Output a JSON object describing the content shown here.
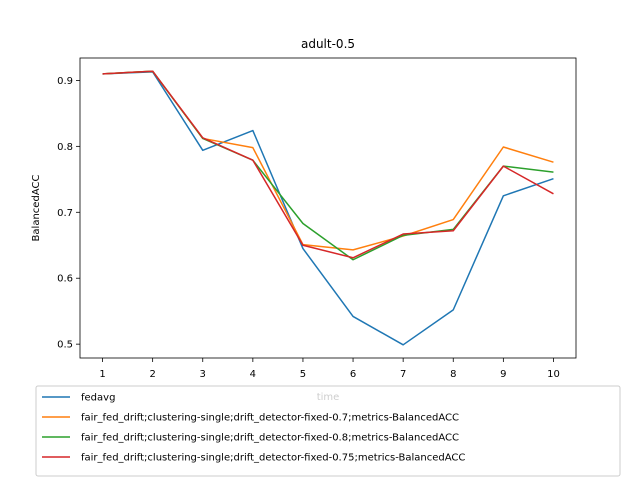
{
  "chart_data": {
    "type": "line",
    "title": "adult-0.5",
    "xlabel": "time",
    "ylabel": "BalancedACC",
    "x": [
      1,
      2,
      3,
      4,
      5,
      6,
      7,
      8,
      9,
      10
    ],
    "xlim": [
      0.55,
      10.45
    ],
    "ylim": [
      0.479,
      0.934
    ],
    "yticks": [
      0.5,
      0.6,
      0.7,
      0.8,
      0.9
    ],
    "ytick_labels": [
      "0.5",
      "0.6",
      "0.7",
      "0.8",
      "0.9"
    ],
    "xtick_labels": [
      "1",
      "2",
      "3",
      "4",
      "5",
      "6",
      "7",
      "8",
      "9",
      "10"
    ],
    "grid": false,
    "legend_placement": "below plot",
    "series": [
      {
        "name": "fedavg",
        "color": "#1f77b4",
        "values": [
          0.91,
          0.913,
          0.794,
          0.824,
          0.645,
          0.542,
          0.499,
          0.552,
          0.725,
          0.751
        ]
      },
      {
        "name": "fair_fed_drift;clustering-single;drift_detector-fixed-0.7;metrics-BalancedACC",
        "color": "#ff7f0e",
        "values": [
          0.91,
          0.914,
          0.812,
          0.798,
          0.651,
          0.643,
          0.664,
          0.689,
          0.799,
          0.776
        ]
      },
      {
        "name": "fair_fed_drift;clustering-single;drift_detector-fixed-0.8;metrics-BalancedACC",
        "color": "#2ca02c",
        "values": [
          0.91,
          0.914,
          0.812,
          0.779,
          0.683,
          0.628,
          0.665,
          0.674,
          0.77,
          0.761
        ]
      },
      {
        "name": "fair_fed_drift;clustering-single;drift_detector-fixed-0.75;metrics-BalancedACC",
        "color": "#d62728",
        "values": [
          0.91,
          0.914,
          0.813,
          0.779,
          0.65,
          0.631,
          0.667,
          0.672,
          0.77,
          0.728
        ]
      }
    ]
  }
}
